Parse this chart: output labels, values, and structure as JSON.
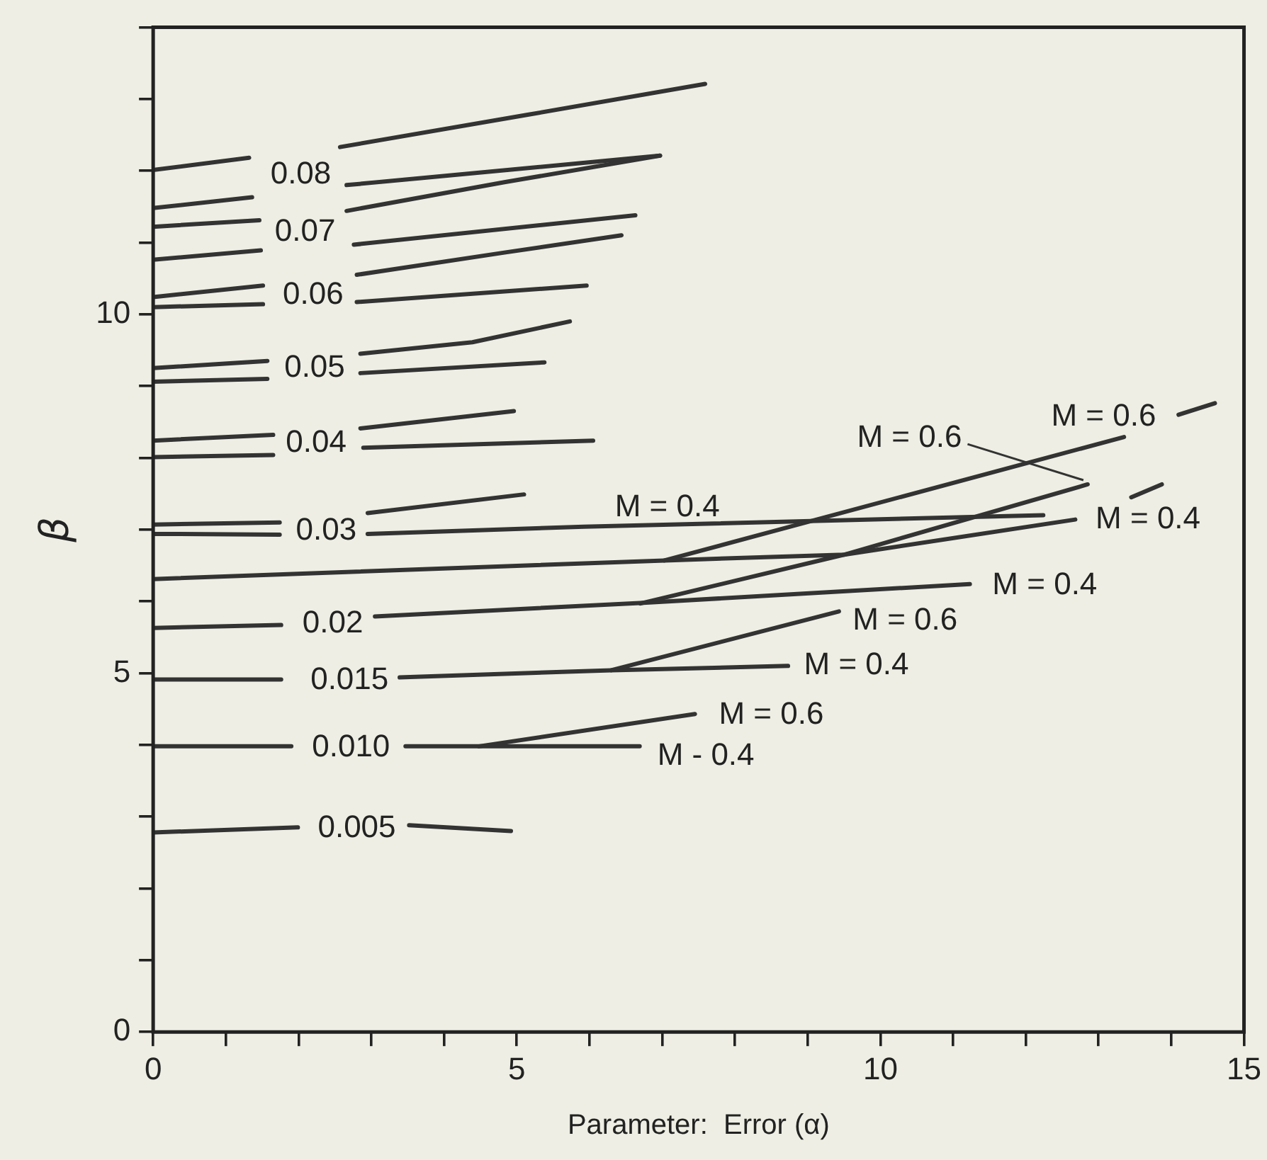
{
  "chart_data": {
    "type": "line",
    "xlabel": "Parameter:  Error (α)",
    "ylabel": "β",
    "xlim": [
      0,
      15
    ],
    "ylim": [
      0,
      14
    ],
    "xticks": [
      0,
      {
        "value": 1,
        "label": null
      },
      {
        "value": 2,
        "label": null
      },
      {
        "value": 3,
        "label": null
      },
      {
        "value": 4,
        "label": null
      },
      5,
      {
        "value": 6,
        "label": null
      },
      {
        "value": 7,
        "label": null
      },
      {
        "value": 8,
        "label": null
      },
      {
        "value": 9,
        "label": null
      },
      10,
      {
        "value": 11,
        "label": null
      },
      {
        "value": 12,
        "label": null
      },
      {
        "value": 13,
        "label": null
      },
      {
        "value": 14,
        "label": null
      },
      15
    ],
    "yticks": [
      0,
      {
        "value": 1,
        "label": null
      },
      {
        "value": 2,
        "label": null
      },
      {
        "value": 3,
        "label": null
      },
      {
        "value": 4,
        "label": null
      },
      5,
      {
        "value": 6,
        "label": null
      },
      {
        "value": 7,
        "label": null
      },
      {
        "value": 8,
        "label": null
      },
      {
        "value": 9,
        "label": null
      },
      10,
      {
        "value": 11,
        "label": null
      },
      {
        "value": 12,
        "label": null
      },
      {
        "value": 13,
        "label": null
      },
      {
        "value": 14,
        "label": null
      }
    ],
    "grid": false,
    "legend": false,
    "marker": "none",
    "line_style": "solid",
    "series": [
      {
        "color": "#333333",
        "x": [
          0,
          1.32,
          1.9,
          2.57,
          5.15,
          7.59
        ],
        "values": [
          12.01,
          12.18,
          null,
          12.33,
          12.78,
          13.21
        ]
      },
      {
        "color": "#333333",
        "x": [
          0,
          1.36,
          1.9,
          2.66,
          6.97
        ],
        "values": [
          11.48,
          11.63,
          null,
          11.8,
          12.21
        ]
      },
      {
        "color": "#333333",
        "x": [
          0,
          1.46,
          2,
          2.66,
          4.83,
          6.97
        ],
        "values": [
          11.22,
          11.31,
          null,
          11.44,
          11.84,
          12.21
        ]
      },
      {
        "color": "#333333",
        "x": [
          0,
          1.48,
          2,
          2.76,
          6.63
        ],
        "values": [
          10.76,
          10.89,
          null,
          10.97,
          11.38
        ]
      },
      {
        "color": "#333333",
        "x": [
          0,
          1.51,
          2.1,
          2.8,
          4.83,
          6.44
        ],
        "values": [
          10.24,
          10.4,
          null,
          10.55,
          10.86,
          11.1
        ]
      },
      {
        "color": "#333333",
        "x": [
          0,
          1.51,
          2.1,
          2.8,
          5.96
        ],
        "values": [
          10.1,
          10.14,
          null,
          10.17,
          10.4
        ]
      },
      {
        "color": "#333333",
        "x": [
          0,
          1.57,
          2.2,
          2.85,
          4.39,
          5.73
        ],
        "values": [
          9.25,
          9.35,
          null,
          9.45,
          9.61,
          9.9
        ]
      },
      {
        "color": "#333333",
        "x": [
          0,
          1.57,
          2.2,
          2.85,
          5.38
        ],
        "values": [
          9.06,
          9.1,
          null,
          9.18,
          9.33
        ]
      },
      {
        "color": "#333333",
        "x": [
          0,
          1.65,
          2.2,
          2.85,
          4.96
        ],
        "values": [
          8.24,
          8.32,
          null,
          8.41,
          8.65
        ]
      },
      {
        "color": "#333333",
        "x": [
          0,
          1.65,
          2.2,
          2.89,
          6.05
        ],
        "values": [
          8.01,
          8.04,
          null,
          8.14,
          8.24
        ]
      },
      {
        "color": "#333333",
        "x": [
          0,
          1.74,
          2.3,
          2.95,
          5.1
        ],
        "values": [
          7.07,
          7.1,
          null,
          7.23,
          7.49
        ]
      },
      {
        "color": "#333333",
        "x": [
          0,
          1.74,
          2.3,
          2.95,
          5.92,
          12.24
        ],
        "values": [
          6.94,
          6.93,
          null,
          6.94,
          7.04,
          7.2
        ]
      },
      {
        "color": "#333333",
        "x": [
          0,
          7.03,
          9.5,
          12.68,
          13.2,
          13.45,
          13.87
        ],
        "values": [
          6.31,
          6.57,
          6.65,
          7.14,
          null,
          7.45,
          7.63
        ]
      },
      {
        "color": "#333333",
        "x": [
          7.03,
          13.35,
          13.7,
          14.1,
          14.6
        ],
        "values": [
          6.57,
          8.29,
          null,
          8.6,
          8.76
        ]
      },
      {
        "color": "#333333",
        "x": [
          0,
          1.76,
          2.4,
          3.05,
          6.74,
          11.23
        ],
        "values": [
          5.63,
          5.67,
          null,
          5.79,
          5.98,
          6.24
        ]
      },
      {
        "color": "#333333",
        "x": [
          6.7,
          9.5,
          12.85
        ],
        "values": [
          5.97,
          6.65,
          7.63
        ]
      },
      {
        "color": "#333333",
        "x": [
          0,
          1.76,
          2.5,
          3.39,
          6.3,
          8.73
        ],
        "values": [
          4.91,
          4.91,
          null,
          4.94,
          5.04,
          5.1
        ]
      },
      {
        "color": "#333333",
        "x": [
          6.3,
          9.43
        ],
        "values": [
          5.04,
          5.86
        ]
      },
      {
        "color": "#333333",
        "x": [
          0,
          1.9,
          2.7,
          3.47,
          4.48,
          6.69
        ],
        "values": [
          3.98,
          3.98,
          null,
          3.98,
          3.98,
          3.98
        ]
      },
      {
        "color": "#333333",
        "x": [
          4.48,
          7.45
        ],
        "values": [
          3.98,
          4.43
        ]
      },
      {
        "color": "#333333",
        "x": [
          0,
          1.99,
          2.7,
          3.52,
          4.92
        ],
        "values": [
          2.78,
          2.85,
          null,
          2.88,
          2.8
        ]
      }
    ],
    "annotations": [
      "0.08",
      "0.07",
      "0.06",
      "0.05",
      "0.04",
      "0.03",
      "0.02",
      "0.015",
      "0.010",
      "0.005",
      "M = 0.4",
      {
        "text": "M = 0.6",
        "x": 12.85,
        "y": 7.63
      },
      "M = 0.6",
      "M = 0.4",
      "M = 0.4",
      "M = 0.6",
      "M = 0.4",
      "M = 0.6",
      "M - 0.4"
    ]
  }
}
